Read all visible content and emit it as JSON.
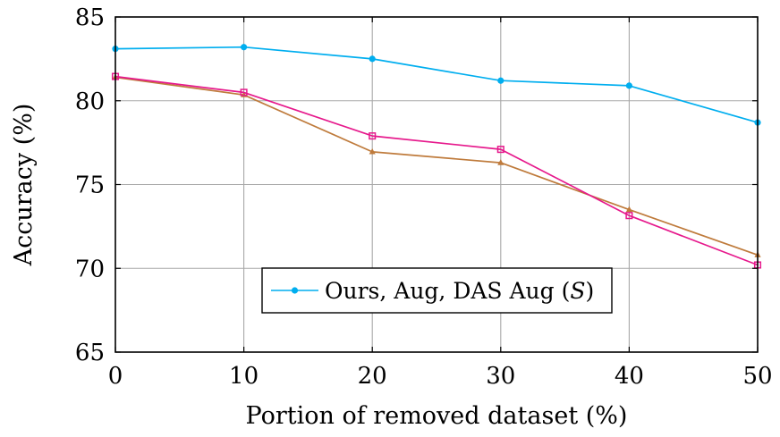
{
  "chart_data": {
    "type": "line",
    "xlabel": "Portion of removed dataset (%)",
    "ylabel": "Accuracy (%)",
    "xlim": [
      0,
      50
    ],
    "ylim": [
      65,
      85
    ],
    "x_ticks": [
      0,
      10,
      20,
      30,
      40,
      50
    ],
    "y_ticks": [
      65,
      70,
      75,
      80,
      85
    ],
    "x_tick_labels": [
      "0",
      "10",
      "20",
      "30",
      "40",
      "50"
    ],
    "y_tick_labels": [
      "65",
      "70",
      "75",
      "80",
      "85"
    ],
    "grid": true,
    "legend_position": "lower-center",
    "legend": {
      "label_text": "Ours, Aug, DAS Aug (",
      "label_math": "S",
      "label_close": ")"
    },
    "x": [
      0,
      10,
      20,
      30,
      40,
      50
    ],
    "series": [
      {
        "values": [
          83.1,
          83.2,
          82.5,
          81.2,
          80.9,
          78.7
        ],
        "color": "#00aeef",
        "marker": "circle"
      },
      {
        "values": [
          81.4,
          80.35,
          76.95,
          76.3,
          73.5,
          70.8
        ],
        "color": "#bf7b3c",
        "marker": "triangle"
      },
      {
        "values": [
          81.45,
          80.5,
          77.9,
          77.1,
          73.15,
          70.2
        ],
        "color": "#e6198c",
        "marker": "square"
      }
    ]
  }
}
